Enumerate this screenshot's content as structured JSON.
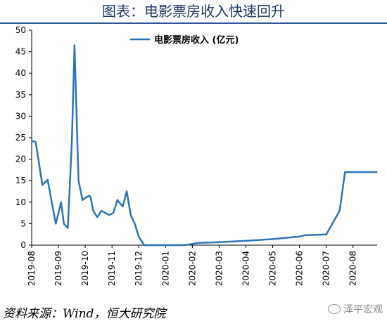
{
  "header": {
    "title": "图表：电影票房收入快速回升"
  },
  "footer": {
    "source": "资料来源：Wind，恒大研究院",
    "watermark": "泽平宏观"
  },
  "colors": {
    "series": "#2e75b6",
    "title": "#1f3864",
    "rule": "#2f5597"
  },
  "chart_data": {
    "type": "line",
    "title": "图表：电影票房收入快速回升",
    "xlabel": "",
    "ylabel": "",
    "ylim": [
      0,
      50
    ],
    "yticks": [
      0,
      5,
      10,
      15,
      20,
      25,
      30,
      35,
      40,
      45,
      50
    ],
    "xticks": [
      "2019-08",
      "2019-09",
      "2019-10",
      "2019-11",
      "2019-12",
      "2020-01",
      "2020-02",
      "2020-03",
      "2020-04",
      "2020-05",
      "2020-06",
      "2020-07",
      "2020-08"
    ],
    "grid": false,
    "legend": "top-center",
    "series": [
      {
        "name": "电影票房收入 (亿元)",
        "x": [
          0,
          0.05,
          0.15,
          0.4,
          0.6,
          0.75,
          0.9,
          1.1,
          1.2,
          1.35,
          1.5,
          1.6,
          1.75,
          1.9,
          2.05,
          2.15,
          2.2,
          2.3,
          2.45,
          2.6,
          2.75,
          2.9,
          3.05,
          3.2,
          3.4,
          3.55,
          3.7,
          3.85,
          4.0,
          4.2,
          4.4,
          4.6,
          4.8,
          4.95,
          5.05,
          5.15,
          5.25,
          5.45,
          5.7,
          5.9,
          6.0,
          6.2,
          7,
          8,
          9,
          10,
          10.2,
          11,
          11.5,
          11.7,
          12,
          12.2,
          12.5,
          12.9
        ],
        "values": [
          24,
          24.2,
          24,
          14,
          15.2,
          10,
          5,
          10,
          5,
          4,
          24,
          46.5,
          15,
          10.5,
          11.2,
          11.5,
          11.2,
          8,
          6.5,
          8,
          7.5,
          7,
          7.5,
          10.5,
          9,
          12.5,
          7,
          5,
          2,
          0,
          0,
          0,
          0,
          0,
          0,
          0,
          0,
          0,
          0,
          0.2,
          0.3,
          0.5,
          0.7,
          1,
          1.4,
          2,
          2.3,
          2.5,
          8,
          17,
          17,
          17,
          17,
          17
        ]
      }
    ]
  }
}
